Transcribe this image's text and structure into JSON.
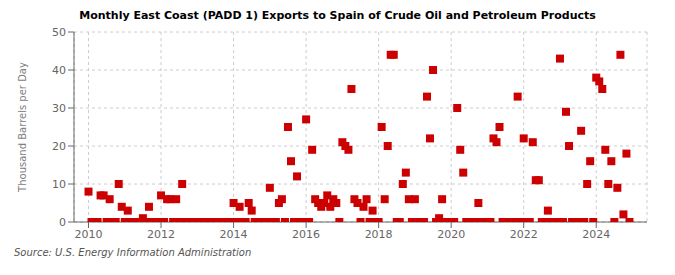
{
  "chart_data": {
    "type": "scatter",
    "title": "Monthly East Coast (PADD 1) Exports to Spain of Crude Oil and Petroleum Products",
    "ylabel": "Thousand Barrels per Day",
    "annotations": [
      "Source: U.S. Energy Information Administration"
    ],
    "color": "#cc0000",
    "marker": "square",
    "grid": true,
    "xlim": [
      2009.6,
      2025.4
    ],
    "xticks": [
      2010,
      2012,
      2014,
      2016,
      2018,
      2020,
      2022,
      2024
    ],
    "ylim": [
      0,
      50
    ],
    "yticks": [
      0,
      10,
      20,
      30,
      40,
      50
    ],
    "x": [
      2010.0,
      2010.083,
      2010.167,
      2010.25,
      2010.333,
      2010.417,
      2010.5,
      2010.583,
      2010.667,
      2010.75,
      2010.833,
      2010.917,
      2011.0,
      2011.083,
      2011.167,
      2011.25,
      2011.333,
      2011.417,
      2011.5,
      2011.583,
      2011.667,
      2011.75,
      2011.833,
      2011.917,
      2012.0,
      2012.083,
      2012.167,
      2012.25,
      2012.333,
      2012.417,
      2012.5,
      2012.583,
      2012.667,
      2012.75,
      2012.833,
      2012.917,
      2013.0,
      2013.083,
      2013.167,
      2013.25,
      2013.333,
      2013.417,
      2013.5,
      2013.583,
      2013.667,
      2013.75,
      2013.833,
      2013.917,
      2014.0,
      2014.083,
      2014.167,
      2014.25,
      2014.333,
      2014.417,
      2014.5,
      2014.583,
      2014.667,
      2014.75,
      2014.833,
      2014.917,
      2015.0,
      2015.083,
      2015.167,
      2015.25,
      2015.333,
      2015.417,
      2015.5,
      2015.583,
      2015.667,
      2015.75,
      2015.833,
      2015.917,
      2016.0,
      2016.083,
      2016.167,
      2016.25,
      2016.333,
      2016.417,
      2016.5,
      2016.583,
      2016.667,
      2016.75,
      2016.833,
      2016.917,
      2017.0,
      2017.083,
      2017.167,
      2017.25,
      2017.333,
      2017.417,
      2017.5,
      2017.583,
      2017.667,
      2017.75,
      2017.833,
      2017.917,
      2018.0,
      2018.083,
      2018.167,
      2018.25,
      2018.333,
      2018.417,
      2018.5,
      2018.583,
      2018.667,
      2018.75,
      2018.833,
      2018.917,
      2019.0,
      2019.083,
      2019.167,
      2019.25,
      2019.333,
      2019.417,
      2019.5,
      2019.583,
      2019.667,
      2019.75,
      2019.833,
      2019.917,
      2020.0,
      2020.083,
      2020.167,
      2020.25,
      2020.333,
      2020.417,
      2020.5,
      2020.583,
      2020.667,
      2020.75,
      2020.833,
      2020.917,
      2021.0,
      2021.083,
      2021.167,
      2021.25,
      2021.333,
      2021.417,
      2021.5,
      2021.583,
      2021.667,
      2021.75,
      2021.833,
      2021.917,
      2022.0,
      2022.083,
      2022.167,
      2022.25,
      2022.333,
      2022.417,
      2022.5,
      2022.583,
      2022.667,
      2022.75,
      2022.833,
      2022.917,
      2023.0,
      2023.083,
      2023.167,
      2023.25,
      2023.333,
      2023.417,
      2023.5,
      2023.583,
      2023.667,
      2023.75,
      2023.833,
      2023.917,
      2024.0,
      2024.083,
      2024.167,
      2024.25,
      2024.333,
      2024.417,
      2024.5,
      2024.583,
      2024.667,
      2024.75,
      2024.833,
      2024.917
    ],
    "values": [
      8,
      0,
      0,
      0,
      7,
      7,
      0,
      6,
      0,
      0,
      10,
      4,
      0,
      3,
      0,
      0,
      0,
      0,
      1,
      0,
      4,
      0,
      0,
      0,
      7,
      0,
      6,
      6,
      0,
      6,
      0,
      10,
      0,
      0,
      0,
      0,
      0,
      0,
      0,
      0,
      0,
      0,
      0,
      0,
      0,
      0,
      0,
      0,
      5,
      0,
      4,
      0,
      0,
      5,
      3,
      0,
      0,
      0,
      0,
      0,
      9,
      0,
      0,
      5,
      6,
      0,
      25,
      16,
      0,
      12,
      0,
      0,
      27,
      0,
      19,
      6,
      5,
      4,
      5,
      7,
      4,
      6,
      5,
      0,
      21,
      20,
      19,
      35,
      6,
      5,
      0,
      4,
      6,
      0,
      3,
      0,
      0,
      25,
      6,
      20,
      44,
      44,
      0,
      0,
      10,
      13,
      6,
      0,
      6,
      0,
      0,
      0,
      33,
      22,
      40,
      0,
      1,
      6,
      0,
      0,
      0,
      0,
      30,
      19,
      13,
      0,
      0,
      0,
      0,
      5,
      0,
      0,
      0,
      0,
      22,
      21,
      25,
      0,
      0,
      0,
      0,
      0,
      33,
      0,
      22,
      0,
      0,
      21,
      11,
      11,
      0,
      0,
      3,
      0,
      0,
      0,
      43,
      0,
      29,
      20,
      0,
      0,
      0,
      24,
      0,
      10,
      16,
      0,
      38,
      37,
      35,
      19,
      10,
      16,
      0,
      9,
      44,
      2,
      18,
      0
    ]
  }
}
